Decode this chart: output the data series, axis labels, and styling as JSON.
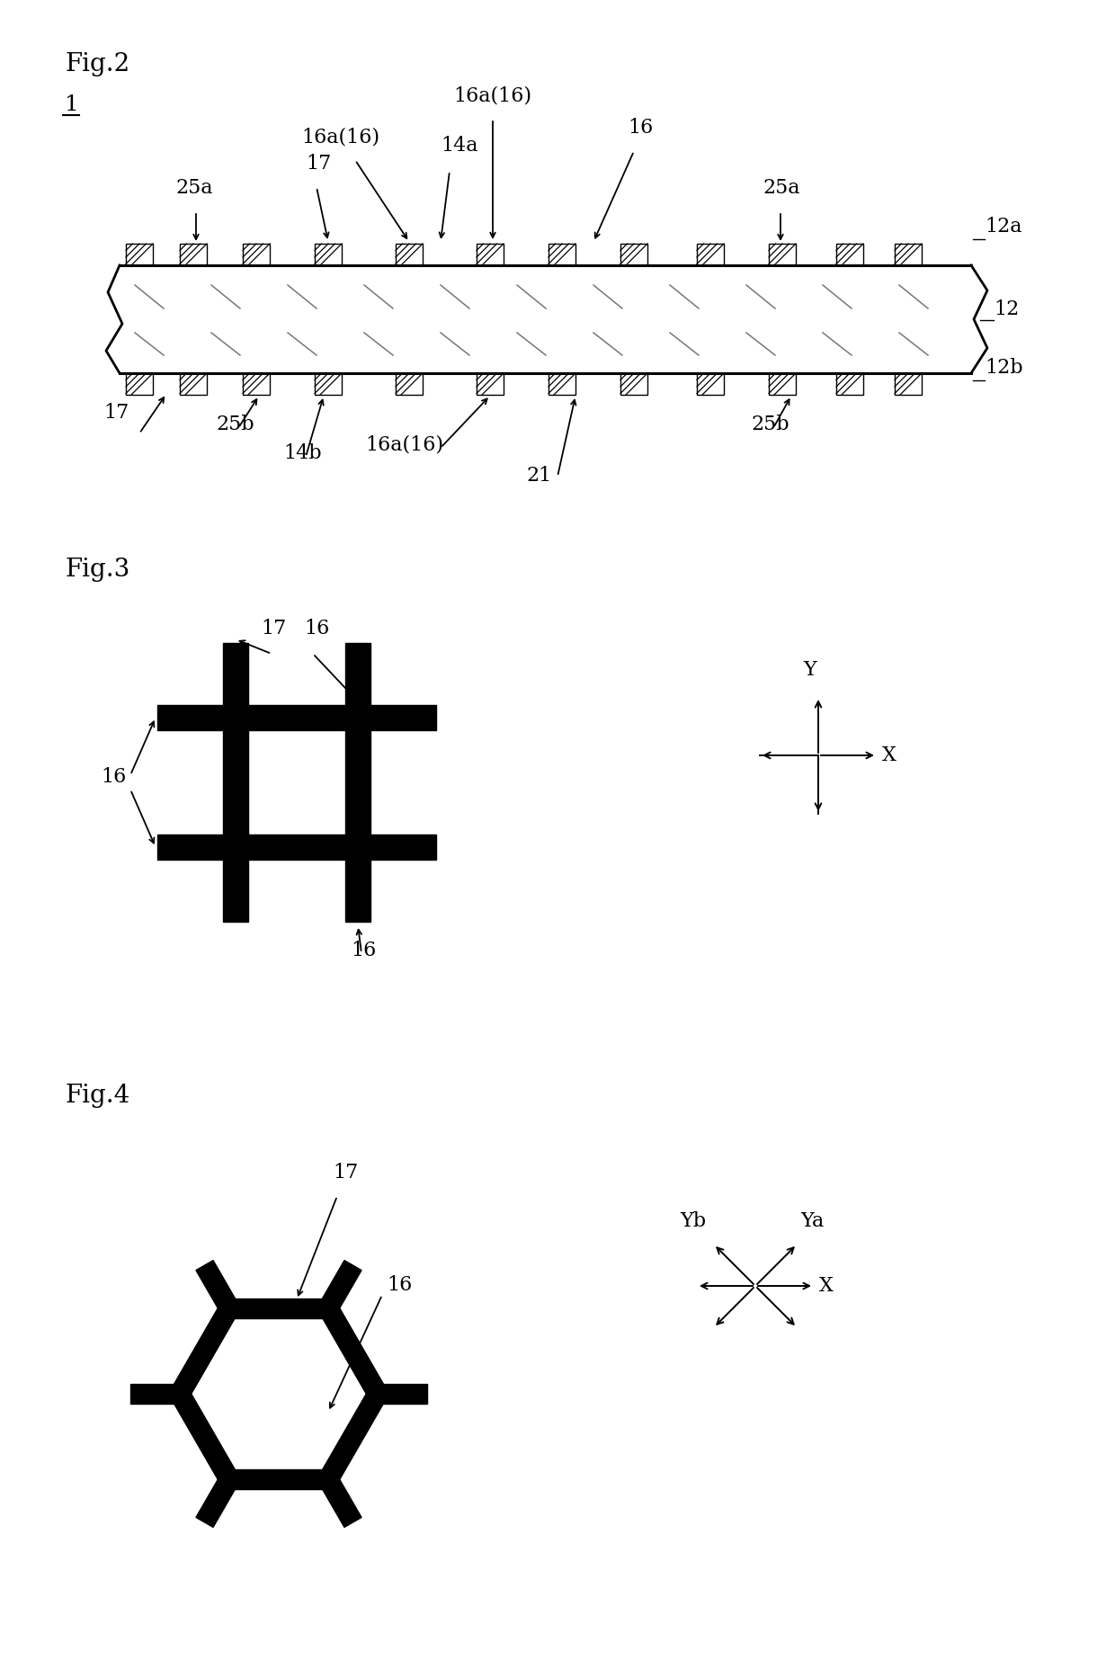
{
  "fig2_label": "Fig.2",
  "fig3_label": "Fig.3",
  "fig4_label": "Fig.4",
  "label_1": "1",
  "label_12": "12",
  "label_12a": "12a",
  "label_12b": "12b",
  "label_14a": "14a",
  "label_14b": "14b",
  "label_16": "16",
  "label_16a16": "16a(16)",
  "label_17": "17",
  "label_21": "21",
  "label_25a": "25a",
  "label_25b": "25b",
  "bg_color": "#ffffff",
  "line_color": "#000000",
  "fill_color": "#000000"
}
